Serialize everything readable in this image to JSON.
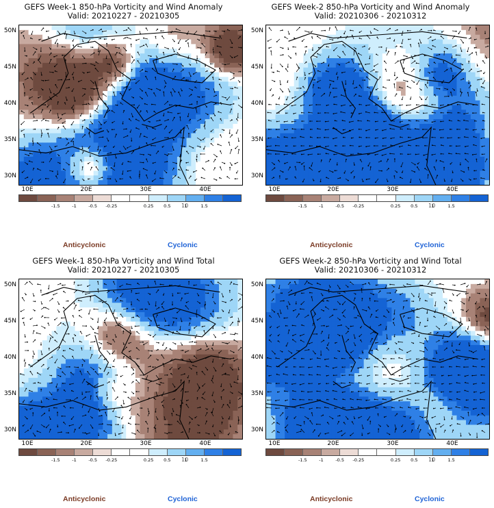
{
  "colors": {
    "anticyclonic_text": "#7a3a24",
    "cyclonic_text": "#1f63d6",
    "colorbar": [
      "#6e4a3f",
      "#8a6356",
      "#a88276",
      "#c8aaa0",
      "#eddcd6",
      "#ffffff",
      "#ffffff",
      "#cfeefd",
      "#9ed6f7",
      "#63aff0",
      "#2f80e6",
      "#1463d4"
    ]
  },
  "panels": [
    {
      "title_line1": "GEFS Week-1 850-hPa Vorticity and Wind Anomaly",
      "title_line2": "Valid: 20210227 - 20210305",
      "field": "anomaly-w1"
    },
    {
      "title_line1": "GEFS Week-2 850-hPa Vorticity and Wind Anomaly",
      "title_line2": "Valid: 20210306 - 20210312",
      "field": "anomaly-w2"
    },
    {
      "title_line1": "GEFS Week-1 850-hPa Vorticity and Wind Total",
      "title_line2": "Valid: 20210227 - 20210305",
      "field": "total-w1"
    },
    {
      "title_line1": "GEFS Week-2 850-hPa Vorticity and Wind Total",
      "title_line2": "Valid: 20210306 - 20210312",
      "field": "total-w2"
    }
  ],
  "axes": {
    "y_labels": [
      "50N",
      "45N",
      "40N",
      "35N",
      "30N"
    ],
    "x_labels": [
      "10E",
      "20E",
      "30E",
      "40E"
    ]
  },
  "colorbar_ticks": [
    "-1.5",
    "-1",
    "-0.5",
    "-0.25",
    "0.25",
    "0.5",
    "1",
    "1.5"
  ],
  "vector_reference": "10",
  "legend": {
    "anticyclonic": "Anticyclonic",
    "cyclonic": "Cyclonic"
  }
}
